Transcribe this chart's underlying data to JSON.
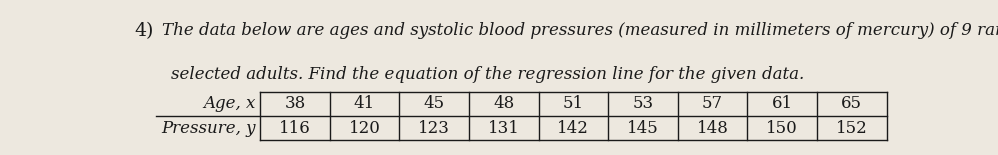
{
  "problem_number": "4)",
  "description_line1": "The data below are ages and systolic blood pressures (measured in millimeters of mercury) of 9 randomly",
  "description_line2": "selected adults. Find the equation of the regression line for the given data.",
  "row1_label": "Age, x",
  "row2_label": "Pressure, y",
  "ages": [
    38,
    41,
    45,
    48,
    51,
    53,
    57,
    61,
    65
  ],
  "pressures": [
    116,
    120,
    123,
    131,
    142,
    145,
    148,
    150,
    152
  ],
  "bg_color": "#ede8df",
  "text_color": "#1a1a1a",
  "font_size_text": 12.0,
  "font_size_table": 12.0
}
